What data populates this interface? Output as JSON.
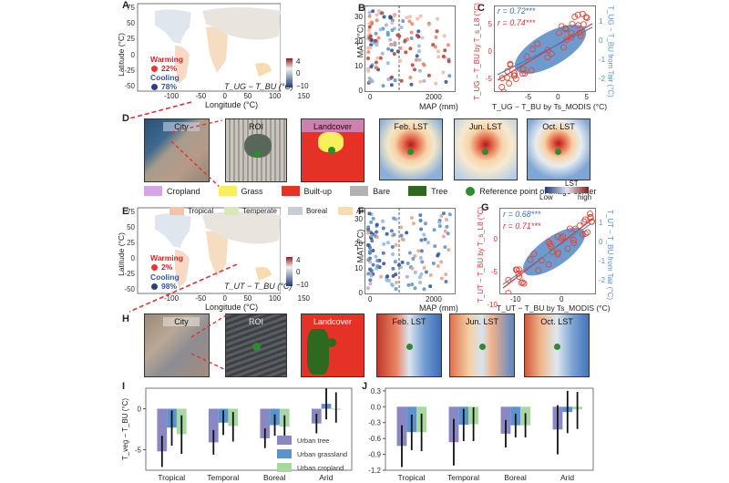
{
  "panels": {
    "A": {
      "label": "A",
      "ylabel": "Latitude (°C)",
      "xlabel": "Longitude (°C)",
      "yticks": [
        "75",
        "50",
        "25",
        "0",
        "-25",
        "-50"
      ],
      "xticks": [
        "-100",
        "-50",
        "0",
        "50",
        "100",
        "150"
      ],
      "warming_label": "Warming",
      "warming_pct": "22%",
      "cooling_label": "Cooling",
      "cooling_pct": "78%",
      "metric": "T_UG − T_BU (°C)",
      "colorbar_ticks": [
        "4",
        "0",
        "−10"
      ]
    },
    "B": {
      "label": "B",
      "ylabel": "MAT (°C)",
      "xlabel": "MAP (mm)",
      "yticks": [
        "30",
        "20",
        "10",
        "0"
      ],
      "xticks": [
        "0",
        "2000"
      ]
    },
    "C": {
      "label": "C",
      "ylabel_left": "T_UG − T_BU by T_s_L8 (°C)",
      "ylabel_right": "T_UG − T_BU from Tair (°C)",
      "xlabel": "T_UG − T_BU by Ts_MODIS (°C)",
      "yticks_left": [
        "5",
        "0",
        "-5"
      ],
      "yticks_right": [
        "1",
        "0",
        "-1",
        "-2"
      ],
      "xticks": [
        "-5",
        "0",
        "5"
      ],
      "r_blue": "r = 0.72***",
      "r_red": "r = 0.74***"
    },
    "D": {
      "label": "D",
      "city": "City",
      "roi": "ROI",
      "landcover": "Landcover",
      "lst": [
        "Feb. LST",
        "Jun. LST",
        "Oct. LST"
      ]
    },
    "legend_landcover": {
      "items": [
        {
          "label": "Cropland",
          "color": "#d9a3ea"
        },
        {
          "label": "Grass",
          "color": "#f7f05a"
        },
        {
          "label": "Built-up",
          "color": "#e53227"
        },
        {
          "label": "Bare",
          "color": "#b3b3b3"
        },
        {
          "label": "Tree",
          "color": "#2d6a1f"
        }
      ],
      "ref_point": "Reference point of image center",
      "ref_color": "#2e8b2e",
      "lst_title": "LST",
      "lst_low": "Low",
      "lst_high": "high"
    },
    "E": {
      "label": "E",
      "ylabel": "Latitude (°C)",
      "xlabel": "Longitude (°C)",
      "yticks": [
        "75",
        "50",
        "25",
        "0",
        "-25",
        "-50"
      ],
      "xticks": [
        "-100",
        "-50",
        "0",
        "50",
        "100",
        "150"
      ],
      "climate_legend": [
        {
          "label": "Tropical",
          "color": "#f4c3a8"
        },
        {
          "label": "Temperate",
          "color": "#d8e8b8"
        },
        {
          "label": "Boreal",
          "color": "#c8ccd4"
        },
        {
          "label": "Arid",
          "color": "#f8dcb0"
        }
      ],
      "warming_label": "Warming",
      "warming_pct": "2%",
      "cooling_label": "Cooling",
      "cooling_pct": "98%",
      "metric": "T_UT − T_BU (°C)",
      "colorbar_ticks": [
        "4",
        "0",
        "−10"
      ]
    },
    "F": {
      "label": "F",
      "ylabel": "MAT (°C)",
      "xlabel": "MAP (mm)",
      "yticks": [
        "30",
        "20",
        "10",
        "0"
      ],
      "xticks": [
        "0",
        "2000"
      ]
    },
    "G": {
      "label": "G",
      "ylabel_left": "T_UT − T_BU by T_s_L8 (°C)",
      "ylabel_right": "T_UT − T_BU from Tair (°C)",
      "xlabel": "T_UT − T_BU by Ts_MODIS (°C)",
      "yticks_left": [
        "0",
        "-5",
        "-10"
      ],
      "yticks_right": [
        "1",
        "0",
        "-1",
        "-2"
      ],
      "xticks": [
        "-10",
        "0"
      ],
      "r_blue": "r = 0.68***",
      "r_red": "r = 0.71***"
    },
    "H": {
      "label": "H",
      "city": "City",
      "roi": "ROI",
      "landcover": "Landcover",
      "lst": [
        "Feb. LST",
        "Jun. LST",
        "Oct. LST"
      ]
    }
  },
  "chart_data": [
    {
      "id": "I",
      "type": "bar",
      "title": "I",
      "ylabel": "T_veg − T_BU (°C)",
      "xlabel": "",
      "categories": [
        "Tropical",
        "Temporal",
        "Boreal",
        "Arid"
      ],
      "ylim": [
        -7.5,
        2.5
      ],
      "yticks": [
        0,
        -5
      ],
      "series": [
        {
          "name": "Urban tree",
          "color": "#8a88c4",
          "values": [
            -5.2,
            -4.1,
            -3.6,
            -1.8
          ],
          "err_low": [
            -7.1,
            -5.6,
            -4.8,
            -3.0
          ],
          "err_high": [
            -3.3,
            -2.6,
            -2.4,
            -0.6
          ]
        },
        {
          "name": "Urban grassland",
          "color": "#5b93cf",
          "values": [
            -2.3,
            -1.7,
            -2.0,
            0.6
          ],
          "err_low": [
            -4.5,
            -3.2,
            -3.3,
            -1.3
          ],
          "err_high": [
            -0.2,
            -0.2,
            -0.7,
            2.5
          ]
        },
        {
          "name": "Urban cropland",
          "color": "#a9d7a0",
          "values": [
            -3.1,
            -2.1,
            -2.2,
            0.0
          ],
          "err_low": [
            -5.5,
            -4.0,
            -3.5,
            -1.7
          ],
          "err_high": [
            -0.8,
            -0.4,
            -0.8,
            2.0
          ]
        }
      ],
      "legend": "bottom-right"
    },
    {
      "id": "J",
      "type": "bar",
      "title": "J",
      "ylabel": "",
      "xlabel": "",
      "categories": [
        "Tropical",
        "Temporal",
        "Boreal",
        "Arid"
      ],
      "ylim": [
        -1.2,
        0.35
      ],
      "yticks": [
        0.3,
        0.0,
        -0.3,
        -0.6,
        -0.9,
        -1.2
      ],
      "ytick_labels": [
        "0.3",
        "0.0",
        "-0.3",
        "-0.6",
        "-0.9",
        "-1.2"
      ],
      "series": [
        {
          "name": "Urban tree",
          "color": "#8a88c4",
          "values": [
            -0.74,
            -0.67,
            -0.51,
            -0.43
          ],
          "err_low": [
            -1.14,
            -1.11,
            -0.77,
            -0.9
          ],
          "err_high": [
            -0.35,
            -0.23,
            -0.25,
            0.03
          ]
        },
        {
          "name": "Urban grassland",
          "color": "#5b93cf",
          "values": [
            -0.48,
            -0.34,
            -0.35,
            -0.1
          ],
          "err_low": [
            -0.82,
            -0.65,
            -0.58,
            -0.5
          ],
          "err_high": [
            -0.15,
            -0.04,
            -0.13,
            0.3
          ]
        },
        {
          "name": "Urban cropland",
          "color": "#a9d7a0",
          "values": [
            -0.48,
            -0.33,
            -0.35,
            -0.05
          ],
          "err_low": [
            -0.84,
            -0.65,
            -0.58,
            -0.42
          ],
          "err_high": [
            -0.13,
            -0.01,
            -0.12,
            0.28
          ]
        }
      ]
    }
  ]
}
